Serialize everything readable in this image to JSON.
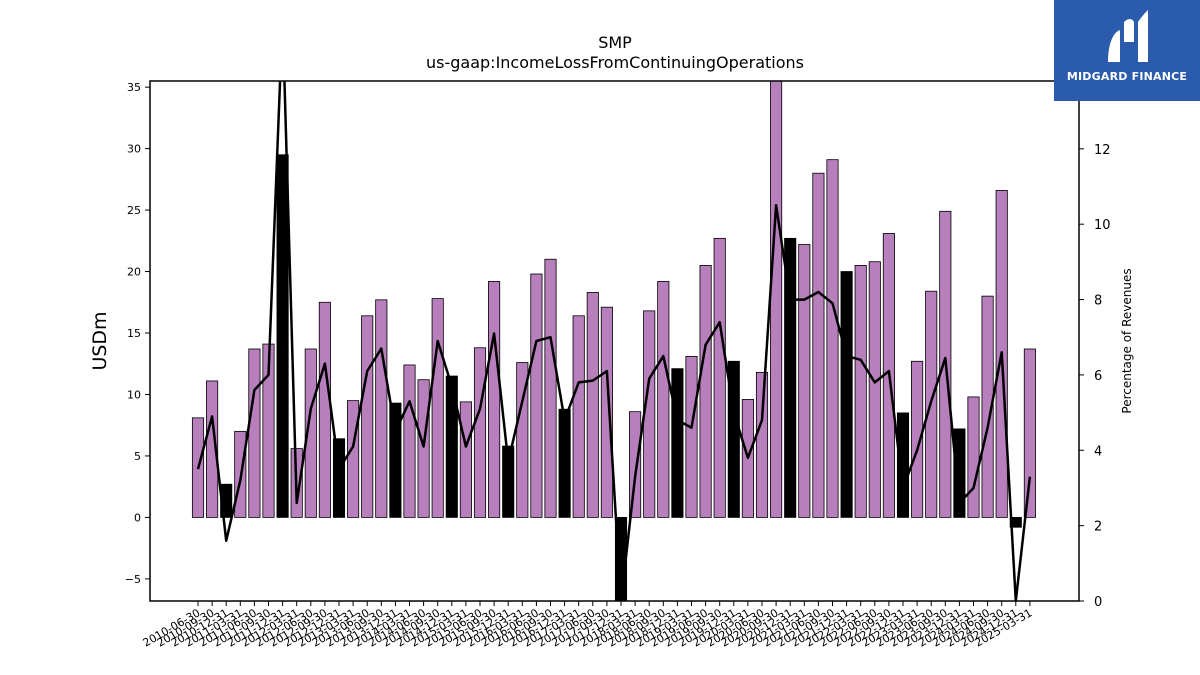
{
  "logo": {
    "text": "MIDGARD FINANCE",
    "background": "#2a5bad"
  },
  "chart_data": {
    "type": "bar",
    "title": "SMP",
    "subtitle": "us-gaap:IncomeLossFromContinuingOperations",
    "ylabel": "USDm",
    "y2label": "Percentage of Revenues",
    "ylim": [
      -6.8,
      35.5
    ],
    "y2lim": [
      0,
      13.8
    ],
    "yticks": [
      -5,
      0,
      5,
      10,
      15,
      20,
      25,
      30,
      35
    ],
    "y2ticks": [
      0,
      2,
      4,
      6,
      8,
      10,
      12
    ],
    "colors": {
      "quarter_bar": "#b87fbd",
      "year_bar": "#000000",
      "line": "#000000"
    },
    "categories": [
      "2010-06-30",
      "2010-09-30",
      "2010-12-31",
      "2011-03-31",
      "2011-06-30",
      "2011-09-30",
      "2011-12-31",
      "2012-03-31",
      "2012-06-30",
      "2012-09-30",
      "2012-12-31",
      "2013-03-31",
      "2013-06-30",
      "2013-09-30",
      "2013-12-31",
      "2014-03-31",
      "2014-06-30",
      "2014-09-30",
      "2014-12-31",
      "2015-03-31",
      "2015-06-30",
      "2015-09-30",
      "2015-12-31",
      "2016-03-31",
      "2016-06-30",
      "2016-09-30",
      "2016-12-31",
      "2017-03-31",
      "2017-06-30",
      "2017-09-30",
      "2017-12-31",
      "2018-03-31",
      "2018-06-30",
      "2018-09-30",
      "2018-12-31",
      "2019-03-31",
      "2019-06-30",
      "2019-09-30",
      "2019-12-31",
      "2020-03-31",
      "2020-06-30",
      "2020-09-30",
      "2020-12-31",
      "2021-03-31",
      "2021-06-30",
      "2021-09-30",
      "2021-12-31",
      "2022-03-31",
      "2022-06-30",
      "2022-09-30",
      "2022-12-31",
      "2023-03-31",
      "2023-06-30",
      "2023-09-30",
      "2023-12-31",
      "2024-03-31",
      "2024-06-30",
      "2024-09-30",
      "2024-12-31",
      "2025-03-31"
    ],
    "series": [
      {
        "name": "",
        "axis": "left",
        "kind": "bar",
        "values": [
          8.1,
          11.1,
          2.7,
          7.0,
          13.7,
          14.1,
          29.5,
          5.6,
          13.7,
          17.5,
          6.4,
          9.5,
          16.4,
          17.7,
          9.3,
          12.4,
          11.2,
          17.8,
          11.5,
          9.4,
          13.8,
          19.2,
          5.8,
          12.6,
          19.8,
          21.0,
          8.8,
          16.4,
          18.3,
          17.1,
          -6.8,
          8.6,
          16.8,
          19.2,
          12.1,
          13.1,
          20.5,
          22.7,
          12.7,
          9.6,
          11.8,
          35.5,
          22.7,
          22.2,
          28.0,
          29.1,
          20.0,
          20.5,
          20.8,
          23.1,
          8.5,
          12.7,
          18.4,
          24.9,
          7.2,
          9.8,
          18.0,
          26.6,
          -0.8,
          13.7
        ]
      },
      {
        "name": "",
        "axis": "right",
        "kind": "line",
        "values": [
          3.5,
          4.9,
          1.6,
          3.2,
          5.6,
          6.0,
          15.5,
          2.6,
          5.1,
          6.3,
          3.5,
          4.1,
          6.1,
          6.7,
          4.5,
          5.3,
          4.1,
          6.9,
          5.7,
          4.1,
          5.1,
          7.1,
          3.7,
          5.3,
          6.9,
          7.0,
          4.8,
          5.8,
          5.85,
          6.1,
          0.0,
          3.3,
          5.9,
          6.5,
          4.8,
          4.6,
          6.8,
          7.4,
          5.0,
          3.8,
          4.8,
          10.5,
          8.0,
          8.0,
          8.2,
          7.9,
          6.5,
          6.4,
          5.8,
          6.1,
          3.0,
          4.0,
          5.3,
          6.45,
          2.6,
          3.0,
          4.6,
          6.6,
          0.0,
          3.3
        ]
      }
    ],
    "bar_kinds": [
      "q",
      "q",
      "y",
      "q",
      "q",
      "q",
      "y",
      "q",
      "q",
      "q",
      "y",
      "q",
      "q",
      "q",
      "y",
      "q",
      "q",
      "q",
      "y",
      "q",
      "q",
      "q",
      "y",
      "q",
      "q",
      "q",
      "y",
      "q",
      "q",
      "q",
      "y",
      "q",
      "q",
      "q",
      "y",
      "q",
      "q",
      "q",
      "y",
      "q",
      "q",
      "q",
      "y",
      "q",
      "q",
      "q",
      "y",
      "q",
      "q",
      "q",
      "y",
      "q",
      "q",
      "q",
      "y",
      "q",
      "q",
      "q",
      "y",
      "q"
    ]
  }
}
